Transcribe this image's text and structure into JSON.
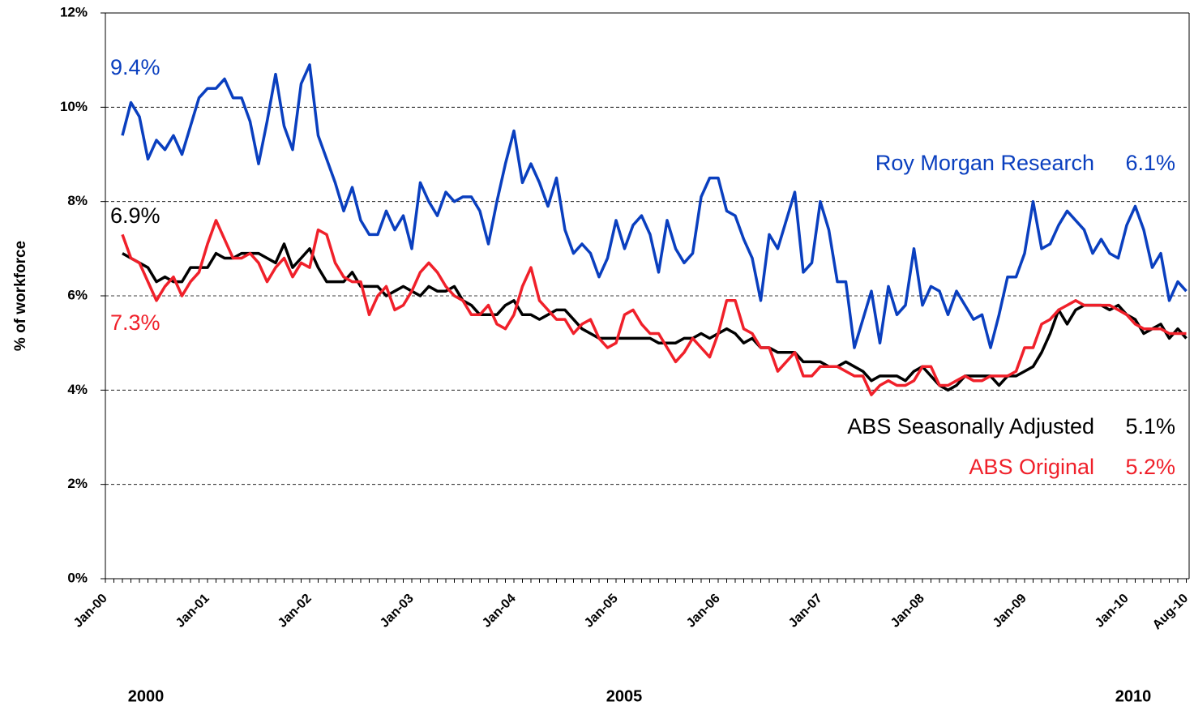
{
  "chart_data": {
    "type": "line",
    "y_label": "% of workforce",
    "ylim": [
      0,
      12
    ],
    "yticks": [
      {
        "value": 0,
        "label": "0%"
      },
      {
        "value": 2,
        "label": "2%"
      },
      {
        "value": 4,
        "label": "4%"
      },
      {
        "value": 6,
        "label": "6%"
      },
      {
        "value": 8,
        "label": "8%"
      },
      {
        "value": 10,
        "label": "10%"
      },
      {
        "value": 12,
        "label": "12%"
      }
    ],
    "grid": true,
    "categories": [
      "Jan-00",
      null,
      null,
      null,
      null,
      null,
      null,
      null,
      null,
      null,
      null,
      null,
      "Jan-01",
      null,
      null,
      null,
      null,
      null,
      null,
      null,
      null,
      null,
      null,
      null,
      "Jan-02",
      null,
      null,
      null,
      null,
      null,
      null,
      null,
      null,
      null,
      null,
      null,
      "Jan-03",
      null,
      null,
      null,
      null,
      null,
      null,
      null,
      null,
      null,
      null,
      null,
      "Jan-04",
      null,
      null,
      null,
      null,
      null,
      null,
      null,
      null,
      null,
      null,
      null,
      "Jan-05",
      null,
      null,
      null,
      null,
      null,
      null,
      null,
      null,
      null,
      null,
      null,
      "Jan-06",
      null,
      null,
      null,
      null,
      null,
      null,
      null,
      null,
      null,
      null,
      null,
      "Jan-07",
      null,
      null,
      null,
      null,
      null,
      null,
      null,
      null,
      null,
      null,
      null,
      "Jan-08",
      null,
      null,
      null,
      null,
      null,
      null,
      null,
      null,
      null,
      null,
      null,
      "Jan-09",
      null,
      null,
      null,
      null,
      null,
      null,
      null,
      null,
      null,
      null,
      null,
      "Jan-10",
      null,
      null,
      null,
      null,
      null,
      null,
      "Aug-10"
    ],
    "x_sections": [
      "2000",
      "2005",
      "2010"
    ],
    "series": [
      {
        "name": "Roy Morgan Research",
        "color": "#0a3fbf",
        "start_label": "9.4%",
        "end_label": "6.1%",
        "values": [
          null,
          null,
          9.4,
          10.1,
          9.8,
          8.9,
          9.3,
          9.1,
          9.4,
          9.0,
          9.6,
          10.2,
          10.4,
          10.4,
          10.6,
          10.2,
          10.2,
          9.7,
          8.8,
          9.7,
          10.7,
          9.6,
          9.1,
          10.5,
          10.9,
          9.4,
          8.9,
          8.4,
          7.8,
          8.3,
          7.6,
          7.3,
          7.3,
          7.8,
          7.4,
          7.7,
          7.0,
          8.4,
          8.0,
          7.7,
          8.2,
          8.0,
          8.1,
          8.1,
          7.8,
          7.1,
          8.0,
          8.8,
          9.5,
          8.4,
          8.8,
          8.4,
          7.9,
          8.5,
          7.4,
          6.9,
          7.1,
          6.9,
          6.4,
          6.8,
          7.6,
          7.0,
          7.5,
          7.7,
          7.3,
          6.5,
          7.6,
          7.0,
          6.7,
          6.9,
          8.1,
          8.5,
          8.5,
          7.8,
          7.7,
          7.2,
          6.8,
          5.9,
          7.3,
          7.0,
          7.6,
          8.2,
          6.5,
          6.7,
          8.0,
          7.4,
          6.3,
          6.3,
          4.9,
          5.5,
          6.1,
          5.0,
          6.2,
          5.6,
          5.8,
          7.0,
          5.8,
          6.2,
          6.1,
          5.6,
          6.1,
          5.8,
          5.5,
          5.6,
          4.9,
          5.6,
          6.4,
          6.4,
          6.9,
          8.0,
          7.0,
          7.1,
          7.5,
          7.8,
          7.6,
          7.4,
          6.9,
          7.2,
          6.9,
          6.8,
          7.5,
          7.9,
          7.4,
          6.6,
          6.9,
          5.9,
          6.3,
          6.1
        ]
      },
      {
        "name": "ABS Seasonally Adjusted",
        "color": "#000000",
        "start_label": "6.9%",
        "end_label": "5.1%",
        "values": [
          null,
          null,
          6.9,
          6.8,
          6.7,
          6.6,
          6.3,
          6.4,
          6.3,
          6.3,
          6.6,
          6.6,
          6.6,
          6.9,
          6.8,
          6.8,
          6.9,
          6.9,
          6.9,
          6.8,
          6.7,
          7.1,
          6.6,
          6.8,
          7.0,
          6.6,
          6.3,
          6.3,
          6.3,
          6.5,
          6.2,
          6.2,
          6.2,
          6.0,
          6.1,
          6.2,
          6.1,
          6.0,
          6.2,
          6.1,
          6.1,
          6.2,
          5.9,
          5.8,
          5.6,
          5.6,
          5.6,
          5.8,
          5.9,
          5.6,
          5.6,
          5.5,
          5.6,
          5.7,
          5.7,
          5.5,
          5.3,
          5.2,
          5.1,
          5.1,
          5.1,
          5.1,
          5.1,
          5.1,
          5.1,
          5.0,
          5.0,
          5.0,
          5.1,
          5.1,
          5.2,
          5.1,
          5.2,
          5.3,
          5.2,
          5.0,
          5.1,
          4.9,
          4.9,
          4.8,
          4.8,
          4.8,
          4.6,
          4.6,
          4.6,
          4.5,
          4.5,
          4.6,
          4.5,
          4.4,
          4.2,
          4.3,
          4.3,
          4.3,
          4.2,
          4.4,
          4.5,
          4.3,
          4.1,
          4.0,
          4.1,
          4.3,
          4.3,
          4.3,
          4.3,
          4.1,
          4.3,
          4.3,
          4.4,
          4.5,
          4.8,
          5.2,
          5.7,
          5.4,
          5.7,
          5.8,
          5.8,
          5.8,
          5.7,
          5.8,
          5.6,
          5.5,
          5.2,
          5.3,
          5.4,
          5.1,
          5.3,
          5.1
        ]
      },
      {
        "name": "ABS Original",
        "color": "#f0202a",
        "start_label": "7.3%",
        "end_label": "5.2%",
        "values": [
          null,
          null,
          7.3,
          6.8,
          6.7,
          6.3,
          5.9,
          6.2,
          6.4,
          6.0,
          6.3,
          6.5,
          7.1,
          7.6,
          7.2,
          6.8,
          6.8,
          6.9,
          6.7,
          6.3,
          6.6,
          6.8,
          6.4,
          6.7,
          6.6,
          7.4,
          7.3,
          6.7,
          6.4,
          6.3,
          6.3,
          5.6,
          6.0,
          6.2,
          5.7,
          5.8,
          6.1,
          6.5,
          6.7,
          6.5,
          6.2,
          6.0,
          5.9,
          5.6,
          5.6,
          5.8,
          5.4,
          5.3,
          5.6,
          6.2,
          6.6,
          5.9,
          5.7,
          5.5,
          5.5,
          5.2,
          5.4,
          5.5,
          5.1,
          4.9,
          5.0,
          5.6,
          5.7,
          5.4,
          5.2,
          5.2,
          4.9,
          4.6,
          4.8,
          5.1,
          4.9,
          4.7,
          5.2,
          5.9,
          5.9,
          5.3,
          5.2,
          4.9,
          4.9,
          4.4,
          4.6,
          4.8,
          4.3,
          4.3,
          4.5,
          4.5,
          4.5,
          4.4,
          4.3,
          4.3,
          3.9,
          4.1,
          4.2,
          4.1,
          4.1,
          4.2,
          4.5,
          4.5,
          4.1,
          4.1,
          4.2,
          4.3,
          4.2,
          4.2,
          4.3,
          4.3,
          4.3,
          4.4,
          4.9,
          4.9,
          5.4,
          5.5,
          5.7,
          5.8,
          5.9,
          5.8,
          5.8,
          5.8,
          5.8,
          5.7,
          5.6,
          5.4,
          5.3,
          5.3,
          5.3,
          5.2,
          5.2,
          5.2
        ]
      }
    ]
  }
}
